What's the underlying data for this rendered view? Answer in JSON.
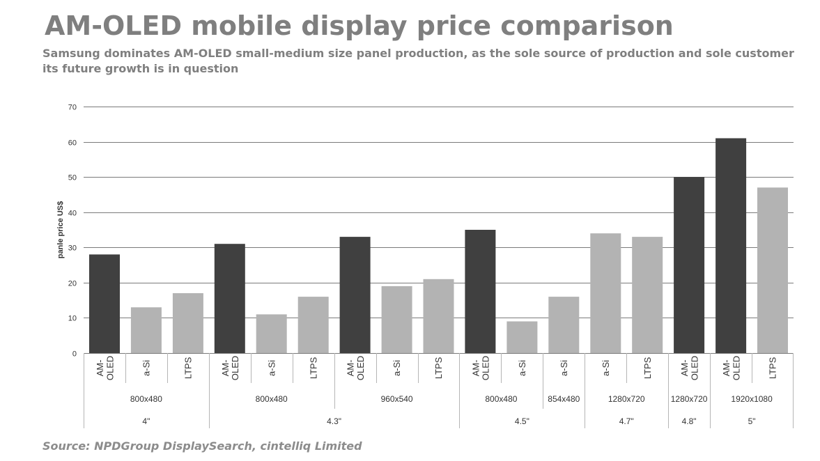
{
  "title": "AM-OLED mobile display price comparison",
  "subtitle": "Samsung dominates AM-OLED small-medium size panel production, as the sole source of production and sole customer its future growth is in question",
  "source": "Source: NPDGroup DisplaySearch, cintelliq Limited",
  "colors": {
    "amoled": "#404040",
    "other": "#b3b3b3",
    "gridline": "#7a7a7a",
    "axis_text": "#333333",
    "category_divider": "#b5b5b5"
  },
  "chart_data": {
    "type": "bar",
    "ylabel": "panle price US$",
    "xlabel": "",
    "ylim": [
      0,
      70
    ],
    "yticks": [
      0,
      10,
      20,
      30,
      40,
      50,
      60,
      70
    ],
    "grid": true,
    "legend": "none",
    "bars": [
      {
        "tech": "AM-OLED",
        "resolution": "800x480",
        "size": "4\"",
        "value": 28
      },
      {
        "tech": "a-Si",
        "resolution": "800x480",
        "size": "4\"",
        "value": 13
      },
      {
        "tech": "LTPS",
        "resolution": "800x480",
        "size": "4\"",
        "value": 17
      },
      {
        "tech": "AM-OLED",
        "resolution": "800x480",
        "size": "4.3\"",
        "value": 31
      },
      {
        "tech": "a-Si",
        "resolution": "800x480",
        "size": "4.3\"",
        "value": 11
      },
      {
        "tech": "LTPS",
        "resolution": "800x480",
        "size": "4.3\"",
        "value": 16
      },
      {
        "tech": "AM-OLED",
        "resolution": "960x540",
        "size": "4.3\"",
        "value": 33
      },
      {
        "tech": "a-Si",
        "resolution": "960x540",
        "size": "4.3\"",
        "value": 19
      },
      {
        "tech": "LTPS",
        "resolution": "960x540",
        "size": "4.3\"",
        "value": 21
      },
      {
        "tech": "AM-OLED",
        "resolution": "800x480",
        "size": "4.5\"",
        "value": 35
      },
      {
        "tech": "a-Si",
        "resolution": "800x480",
        "size": "4.5\"",
        "value": 9
      },
      {
        "tech": "a-Si",
        "resolution": "854x480",
        "size": "4.5\"",
        "value": 16
      },
      {
        "tech": "a-Si",
        "resolution": "1280x720",
        "size": "4.7\"",
        "value": 34
      },
      {
        "tech": "LTPS",
        "resolution": "1280x720",
        "size": "4.7\"",
        "value": 33
      },
      {
        "tech": "AM-OLED",
        "resolution": "1280x720",
        "size": "4.8\"",
        "value": 50
      },
      {
        "tech": "AM-OLED",
        "resolution": "1920x1080",
        "size": "5\"",
        "value": 61
      },
      {
        "tech": "LTPS",
        "resolution": "1920x1080",
        "size": "5\"",
        "value": 47
      }
    ]
  }
}
